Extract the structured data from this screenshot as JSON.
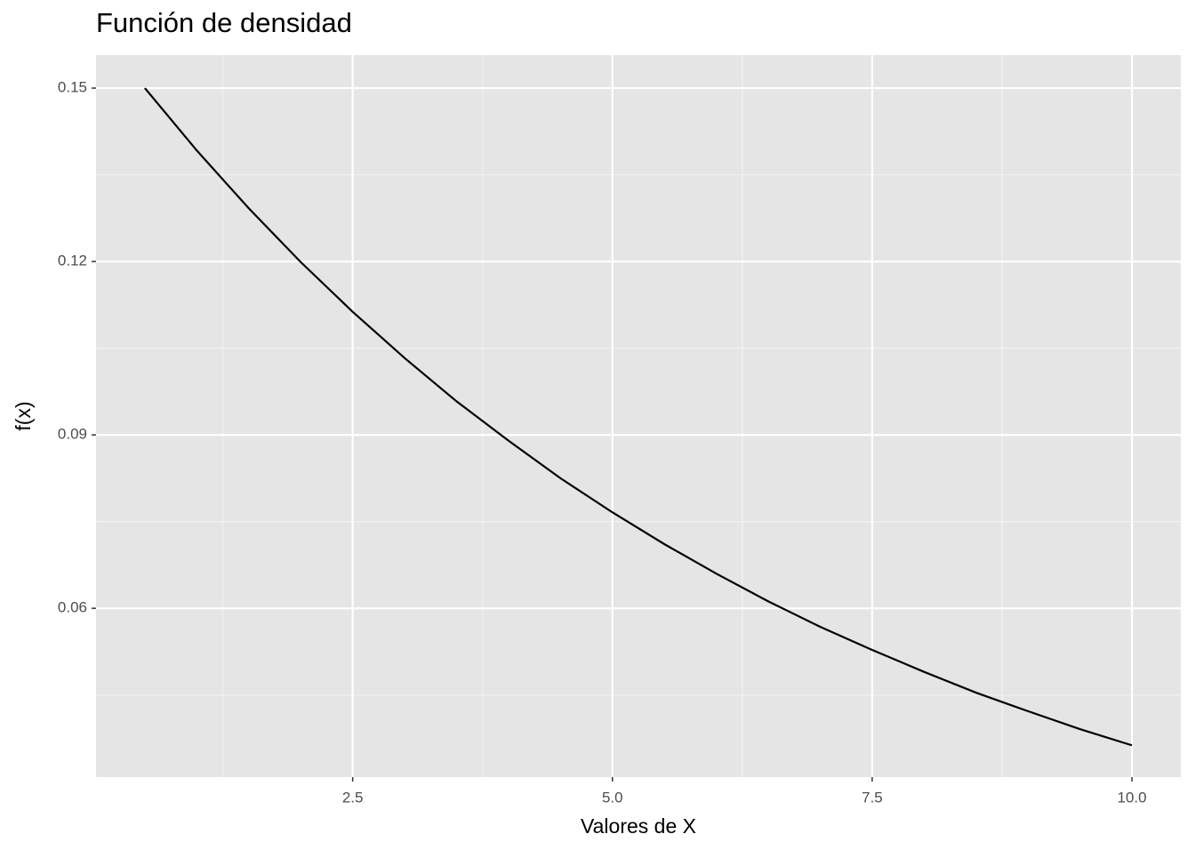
{
  "chart_data": {
    "type": "line",
    "title": "Función de densidad",
    "x_label": "Valores de X",
    "y_label": "f(x)",
    "x": [
      0.5,
      1.0,
      1.5,
      2.0,
      2.5,
      3.0,
      3.5,
      4.0,
      4.5,
      5.0,
      5.5,
      6.0,
      6.5,
      7.0,
      7.5,
      8.0,
      8.5,
      9.0,
      9.5,
      10.0
    ],
    "series": [
      {
        "color": "#000000",
        "values": [
          0.15,
          0.1392,
          0.1292,
          0.1199,
          0.1113,
          0.1033,
          0.0958,
          0.089,
          0.0825,
          0.0766,
          0.0711,
          0.066,
          0.0612,
          0.0568,
          0.0528,
          0.049,
          0.0454,
          0.0422,
          0.0391,
          0.0363
        ]
      }
    ],
    "xlim": [
      0.03,
      10.47
    ],
    "ylim": [
      0.0308,
      0.1557
    ],
    "xticks": [
      2.5,
      {
        "value": 5,
        "label": "5.0"
      },
      7.5,
      {
        "value": 10,
        "label": "10.0"
      }
    ],
    "yticks": [
      0.06,
      0.09,
      0.12,
      0.15
    ],
    "grid": true
  }
}
